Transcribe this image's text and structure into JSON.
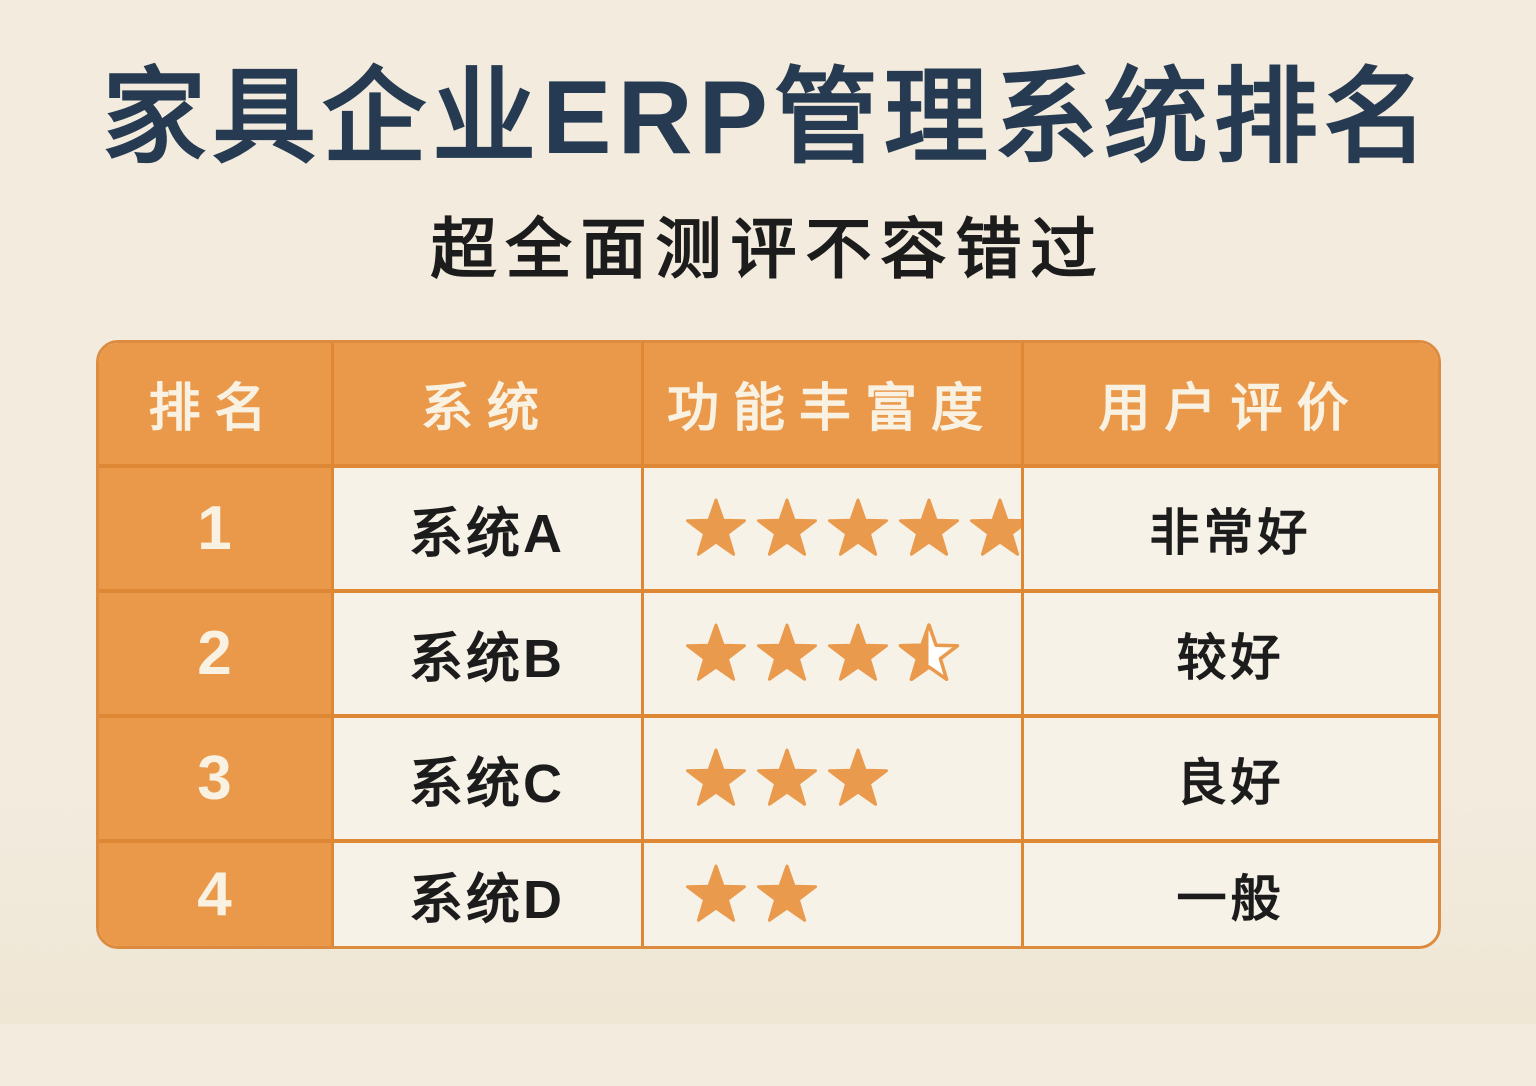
{
  "page": {
    "title": "家具企业ERP管理系统排名",
    "subtitle": "超全面测评不容错过"
  },
  "table": {
    "columns": [
      "排名",
      "系统",
      "功能丰富度",
      "用户评价"
    ],
    "rows": [
      {
        "rank": "1",
        "system": "系统A",
        "rating": 5,
        "review": "非常好"
      },
      {
        "rank": "2",
        "system": "系统B",
        "rating": 3.5,
        "review": "较好"
      },
      {
        "rank": "3",
        "system": "系统C",
        "rating": 3,
        "review": "良好"
      },
      {
        "rank": "4",
        "system": "系统D",
        "rating": 2,
        "review": "一般"
      }
    ],
    "rating_max": 5
  },
  "icons": {
    "star": "★",
    "half_star": "left-half-filled star outline"
  },
  "colors": {
    "accent_orange": "#ea994b",
    "divider_orange": "#de8836",
    "table_border": "#dd8b3f",
    "title_navy": "#263b52",
    "text_black": "#1c1c1c",
    "page_bg": "#f2ebde",
    "cell_bg": "#f7f2e7",
    "header_text": "#f9f2e2",
    "star_orange": "#ea9a4c",
    "star_empty": "#ffffff"
  },
  "chart_data": {
    "type": "table",
    "title": "家具企业ERP管理系统排名",
    "subtitle": "超全面测评不容错过",
    "columns": [
      "排名",
      "系统",
      "功能丰富度",
      "用户评价"
    ],
    "rows": [
      [
        "1",
        "系统A",
        5,
        "非常好"
      ],
      [
        "2",
        "系统B",
        3.5,
        "较好"
      ],
      [
        "3",
        "系统C",
        3,
        "良好"
      ],
      [
        "4",
        "系统D",
        2,
        "一般"
      ]
    ],
    "rating_scale": [
      0,
      5
    ]
  }
}
